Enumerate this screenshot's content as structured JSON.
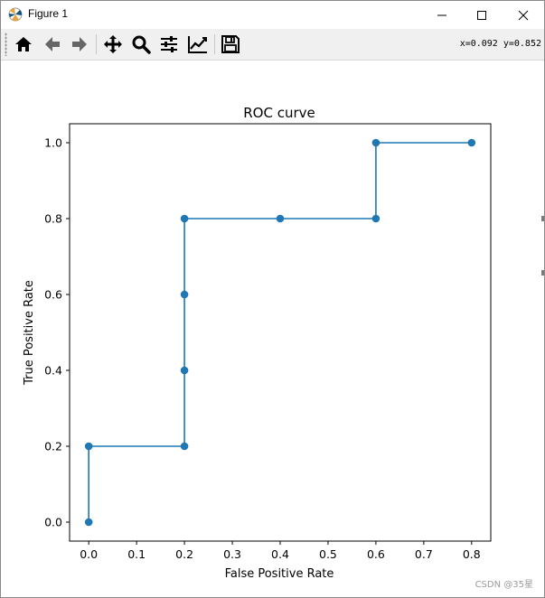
{
  "window": {
    "title": "Figure 1"
  },
  "toolbar": {
    "buttons": [
      {
        "name": "home-icon",
        "label": "Home"
      },
      {
        "name": "back-arrow-icon",
        "label": "Back"
      },
      {
        "name": "forward-arrow-icon",
        "label": "Forward"
      },
      {
        "name": "pan-icon",
        "label": "Pan"
      },
      {
        "name": "zoom-icon",
        "label": "Zoom"
      },
      {
        "name": "configure-subplots-icon",
        "label": "Subplots"
      },
      {
        "name": "edit-axis-icon",
        "label": "Customize"
      },
      {
        "name": "save-icon",
        "label": "Save"
      }
    ],
    "coords": "x=0.092 y=0.852"
  },
  "watermark": "CSDN @35星",
  "colors": {
    "series": "#1f77b4",
    "toolbar_bg": "#f0f0f0"
  },
  "chart_data": {
    "type": "line",
    "title": "ROC curve",
    "xlabel": "False Positive Rate",
    "ylabel": "True Positive Rate",
    "xlim": [
      -0.04,
      0.84
    ],
    "ylim": [
      -0.05,
      1.05
    ],
    "xticks": [
      0.0,
      0.1,
      0.2,
      0.3,
      0.4,
      0.5,
      0.6,
      0.7,
      0.8
    ],
    "xtick_labels": [
      "0.0",
      "0.1",
      "0.2",
      "0.3",
      "0.4",
      "0.5",
      "0.6",
      "0.7",
      "0.8"
    ],
    "yticks": [
      0.0,
      0.2,
      0.4,
      0.6,
      0.8,
      1.0
    ],
    "ytick_labels": [
      "0.0",
      "0.2",
      "0.4",
      "0.6",
      "0.8",
      "1.0"
    ],
    "grid": false,
    "marker": "o",
    "series": [
      {
        "x": [
          0.0,
          0.0,
          0.2,
          0.2,
          0.2,
          0.2,
          0.4,
          0.6,
          0.6,
          0.8
        ],
        "y": [
          0.0,
          0.2,
          0.2,
          0.4,
          0.6,
          0.8,
          0.8,
          0.8,
          1.0,
          1.0
        ]
      }
    ]
  }
}
